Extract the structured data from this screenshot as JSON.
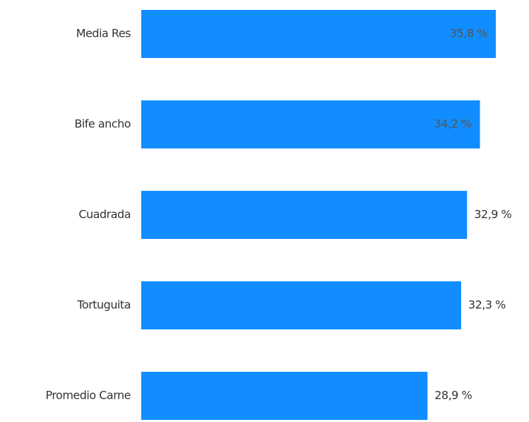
{
  "chart_data": {
    "type": "bar",
    "orientation": "horizontal",
    "categories": [
      "Media Res",
      "Bife ancho",
      "Cuadrada",
      "Tortuguita",
      "Promedio Carne"
    ],
    "values": [
      35.8,
      34.2,
      32.9,
      32.3,
      28.9
    ],
    "value_labels": [
      "35,8 %",
      "34,2 %",
      "32,9 %",
      "32,3 %",
      "28,9 %"
    ],
    "color": "#118dff"
  }
}
